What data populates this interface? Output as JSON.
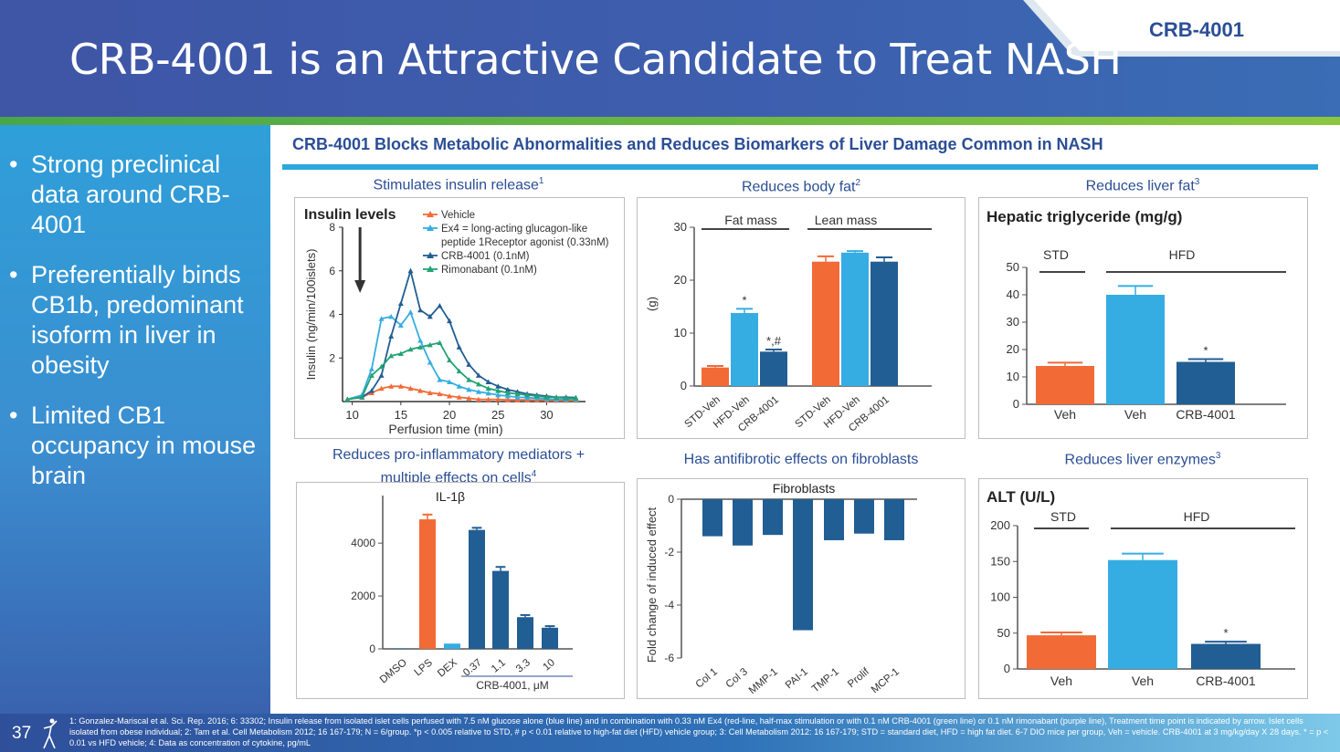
{
  "header": {
    "title": "CRB-4001 is an Attractive Candidate to Treat NASH",
    "tag": "CRB-4001"
  },
  "bullets": [
    "Strong preclinical data around CRB-4001",
    "Preferentially binds CB1b, predominant isoform in liver in obesity",
    "Limited CB1 occupancy in mouse brain"
  ],
  "subheader": "CRB-4001 Blocks Metabolic Abnormalities and Reduces Biomarkers of Liver Damage Common in NASH",
  "panel_titles": {
    "insulin": "Stimulates insulin release",
    "insulin_sup": "1",
    "bodyfat": "Reduces body fat",
    "bodyfat_sup": "2",
    "liverfat": "Reduces liver fat",
    "liverfat_sup": "3",
    "il1b_line1": "Reduces pro-inflammatory mediators +",
    "il1b_line2": "multiple effects on cells",
    "il1b_sup": "4",
    "fibro": "Has antifibrotic effects on fibroblasts",
    "alt": "Reduces liver enzymes",
    "alt_sup": "3"
  },
  "colors": {
    "orange": "#f26a36",
    "lightblue": "#35ade3",
    "darkblue": "#215e93",
    "green": "#23a373",
    "text": "#333333"
  },
  "chart_data": [
    {
      "id": "insulin",
      "type": "line",
      "title": "Insulin levels",
      "xlabel": "Perfusion time (min)",
      "ylabel": "Insulin (ng/min/100islets)",
      "xlim": [
        9,
        34
      ],
      "ylim": [
        0,
        8
      ],
      "xticks": [
        10,
        15,
        20,
        25,
        30
      ],
      "yticks": [
        2,
        4,
        6,
        8
      ],
      "x": [
        9.5,
        11,
        12,
        13,
        14,
        15,
        16,
        17,
        18,
        19,
        20,
        21,
        22,
        23,
        24,
        25,
        26,
        27,
        28,
        29,
        30,
        31,
        32,
        33
      ],
      "series": [
        {
          "name": "Vehicle",
          "color": "#f26a36",
          "marker": "triangle",
          "values": [
            0.1,
            0.2,
            0.4,
            0.6,
            0.7,
            0.7,
            0.6,
            0.5,
            0.4,
            0.35,
            0.25,
            0.2,
            0.15,
            0.1,
            0.1,
            0.1,
            0.08,
            0.08,
            0.08,
            0.06,
            0.06,
            0.05,
            0.05,
            0.05
          ]
        },
        {
          "name": "Ex4 = long-acting glucagon-like peptide 1Receptor agonist (0.33nM)",
          "legend_lines": [
            "Ex4 = long-acting glucagon-like",
            "peptide 1Receptor agonist (0.33nM)"
          ],
          "color": "#35ade3",
          "marker": "triangle",
          "values": [
            0.1,
            0.3,
            1.5,
            3.8,
            3.9,
            3.5,
            4.1,
            2.8,
            1.8,
            1.0,
            0.9,
            0.7,
            0.55,
            0.45,
            0.38,
            0.3,
            0.25,
            0.2,
            0.18,
            0.15,
            0.12,
            0.1,
            0.1,
            0.1
          ]
        },
        {
          "name": "CRB-4001 (0.1nM)",
          "color": "#215e93",
          "marker": "triangle",
          "values": [
            0.1,
            0.2,
            0.5,
            1.2,
            3.0,
            4.5,
            6.0,
            4.2,
            3.9,
            4.4,
            3.7,
            2.5,
            1.7,
            1.2,
            0.9,
            0.7,
            0.55,
            0.45,
            0.35,
            0.3,
            0.25,
            0.2,
            0.2,
            0.18
          ]
        },
        {
          "name": "Rimonabant (0.1nM)",
          "color": "#23a373",
          "marker": "triangle",
          "values": [
            0.1,
            0.2,
            1.2,
            1.6,
            2.1,
            2.2,
            2.4,
            2.5,
            2.6,
            2.7,
            1.9,
            1.4,
            1.0,
            0.8,
            0.6,
            0.5,
            0.4,
            0.35,
            0.3,
            0.25,
            0.2,
            0.2,
            0.15,
            0.15
          ]
        }
      ],
      "annotation": "arrow at 11 min"
    },
    {
      "id": "bodyfat",
      "type": "bar",
      "ylabel": "(g)",
      "ylim": [
        0,
        30
      ],
      "yticks": [
        0,
        10,
        20,
        30
      ],
      "group_labels": [
        "Fat mass",
        "Lean mass"
      ],
      "categories": [
        "STD-Veh",
        "HFD-Veh",
        "CRB-4001",
        "STD-Veh",
        "HFD-Veh",
        "CRB-4001"
      ],
      "values": [
        3.5,
        13.8,
        6.5,
        23.5,
        25.2,
        23.5
      ],
      "errors": [
        0.3,
        0.8,
        0.4,
        1.0,
        0.3,
        0.8
      ],
      "bar_colors": [
        "#f26a36",
        "#35ade3",
        "#215e93",
        "#f26a36",
        "#35ade3",
        "#215e93"
      ],
      "annotations": [
        "",
        "*",
        "*,#",
        "",
        "",
        ""
      ]
    },
    {
      "id": "liverfat",
      "type": "bar",
      "title": "Hepatic triglyceride  (mg/g)",
      "ylim": [
        0,
        50
      ],
      "yticks": [
        0,
        10,
        20,
        30,
        40,
        50
      ],
      "group_labels": [
        "STD",
        "HFD"
      ],
      "categories": [
        "Veh",
        "Veh",
        "CRB-4001"
      ],
      "values": [
        14,
        40,
        15.5
      ],
      "errors": [
        1.2,
        3.2,
        1.0
      ],
      "bar_colors": [
        "#f26a36",
        "#35ade3",
        "#215e93"
      ],
      "annotations": [
        "",
        "",
        "*"
      ]
    },
    {
      "id": "il1b",
      "type": "bar",
      "title": "IL-1β",
      "ylim": [
        0,
        5800
      ],
      "yticks": [
        0,
        2000,
        4000
      ],
      "categories": [
        "DMSO",
        "LPS",
        "DEX",
        "0.37",
        "1.1",
        "3.3",
        "10"
      ],
      "values": [
        0,
        4900,
        200,
        4500,
        2950,
        1200,
        800
      ],
      "errors": [
        0,
        180,
        0,
        80,
        150,
        80,
        60
      ],
      "bar_colors": [
        "#215e93",
        "#f26a36",
        "#35ade3",
        "#215e93",
        "#215e93",
        "#215e93",
        "#215e93"
      ],
      "group_label": "CRB-4001, μM"
    },
    {
      "id": "fibro",
      "type": "bar",
      "title": "Fibroblasts",
      "ylabel": "Fold change of induced effect",
      "ylim": [
        -6,
        0
      ],
      "yticks": [
        0,
        -2,
        -4,
        -6
      ],
      "categories": [
        "Col 1",
        "Col 3",
        "MMP-1",
        "PAI-1",
        "TMP-1",
        "Prolif",
        "MCP-1"
      ],
      "values": [
        -1.4,
        -1.75,
        -1.35,
        -4.95,
        -1.55,
        -1.3,
        -1.55
      ],
      "bar_colors": [
        "#215e93",
        "#215e93",
        "#215e93",
        "#215e93",
        "#215e93",
        "#215e93",
        "#215e93"
      ]
    },
    {
      "id": "alt",
      "type": "bar",
      "title": "ALT (U/L)",
      "ylim": [
        0,
        200
      ],
      "yticks": [
        0,
        50,
        100,
        150,
        200
      ],
      "group_labels": [
        "STD",
        "HFD"
      ],
      "categories": [
        "Veh",
        "Veh",
        "CRB-4001"
      ],
      "values": [
        47,
        152,
        35
      ],
      "errors": [
        4,
        9,
        3
      ],
      "bar_colors": [
        "#f26a36",
        "#35ade3",
        "#215e93"
      ],
      "annotations": [
        "",
        "",
        "*"
      ]
    }
  ],
  "footer": {
    "page": "37",
    "footnote": "1: Gonzalez-Mariscal et al. Sci. Rep. 2016; 6: 33302; Insulin release from isolated islet cells perfused with 7.5 nM glucose alone (blue line) and in combination with 0.33 nM Ex4 (red-line, half-max stimulation or with 0.1 nM CRB-4001 (green line) or 0.1 nM rimonabant (purple line), Treatment time point is indicated by arrow. Islet cells isolated from obese individual; 2: Tam et al. Cell Metabolism 2012; 16 167-179; N = 6/group.  *p < 0.005 relative to STD, # p < 0.01 relative to high-fat diet (HFD) vehicle group; 3: Cell Metabolism 2012: 16 167-179; STD = standard diet, HFD = high fat diet. 6-7 DIO mice per group, Veh = vehicle. CRB-4001 at 3 mg/kg/day X 28 days. * = p < 0.01 vs HFD vehicle; 4: Data as concentration of cytokine, pg/mL"
  }
}
